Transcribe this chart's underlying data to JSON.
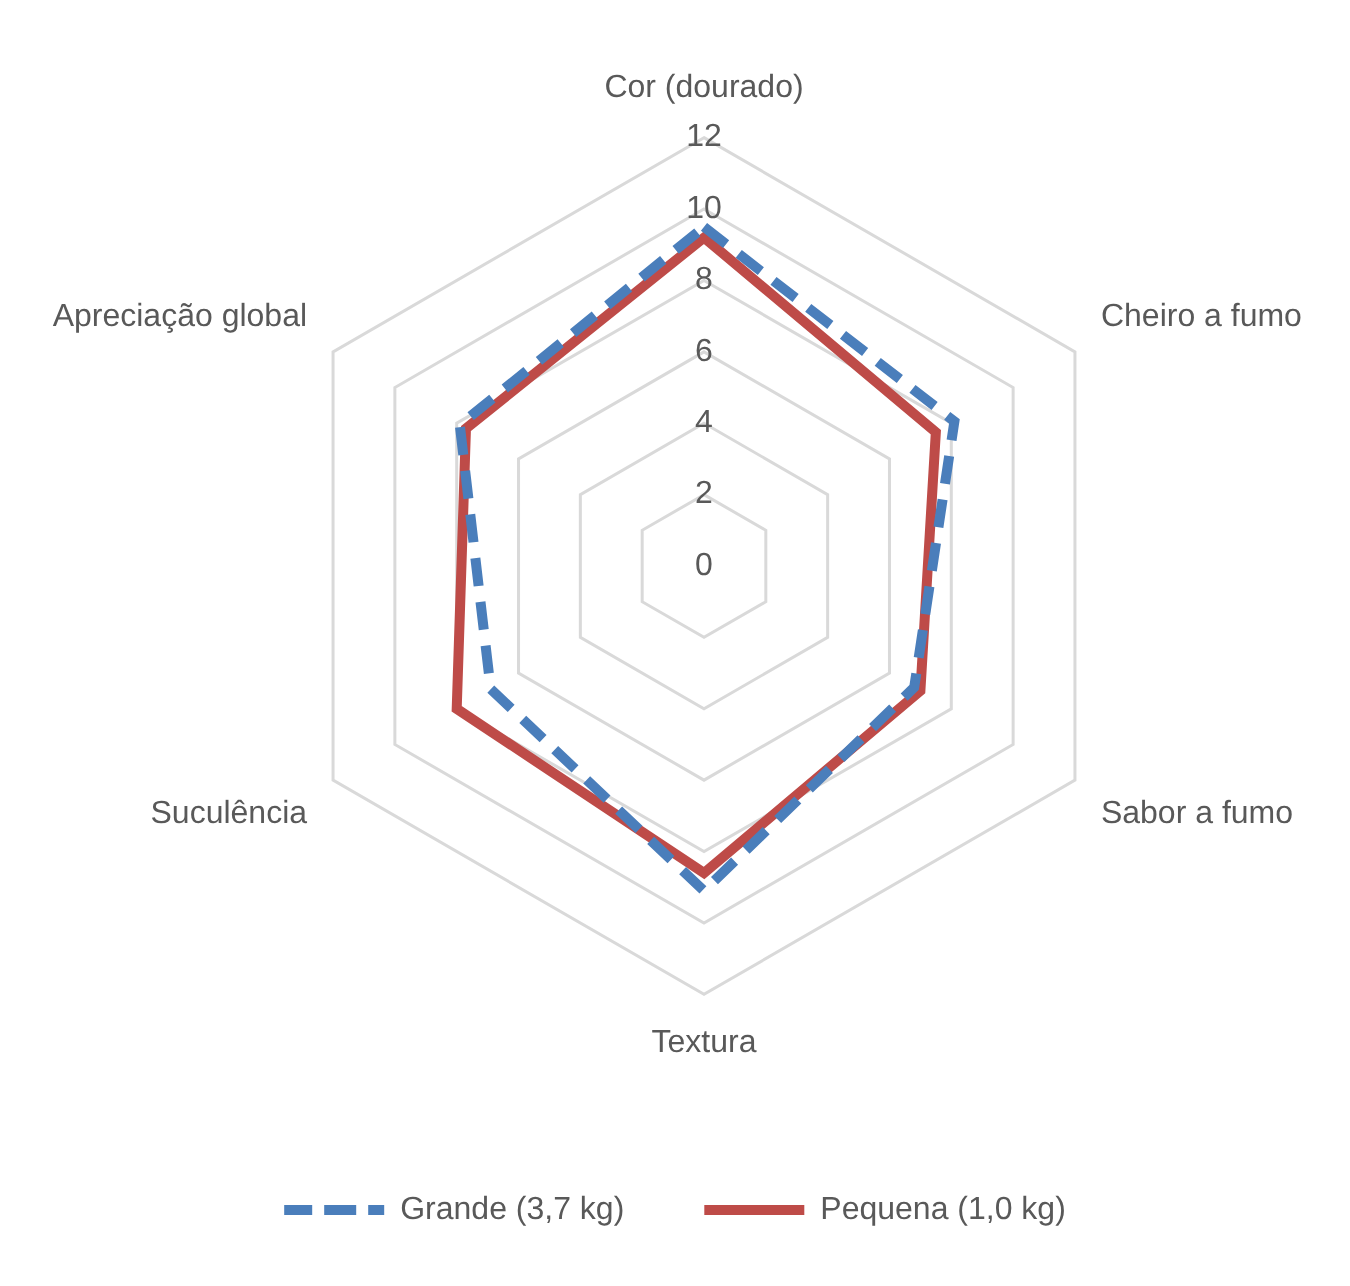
{
  "chart_data": {
    "type": "radar",
    "categories": [
      "Cor (dourado)",
      "Cheiro a fumo",
      "Sabor a fumo",
      "Textura",
      "Suculência",
      "Apreciação global"
    ],
    "series": [
      {
        "name": "Grande (3,7 kg)",
        "color": "#4a7ebb",
        "values": [
          9.5,
          8.1,
          6.8,
          9.1,
          6.9,
          7.9
        ],
        "line_style": "dashed"
      },
      {
        "name": "Pequena (1,0 kg)",
        "color": "#be4b48",
        "values": [
          9.2,
          7.5,
          7.0,
          8.6,
          8.0,
          7.7
        ],
        "line_style": "solid"
      }
    ],
    "ylim": [
      0,
      12
    ],
    "yticks": [
      0,
      2,
      4,
      6,
      8,
      10,
      12
    ],
    "grid": true,
    "legend": "bottom",
    "marker": "none"
  }
}
